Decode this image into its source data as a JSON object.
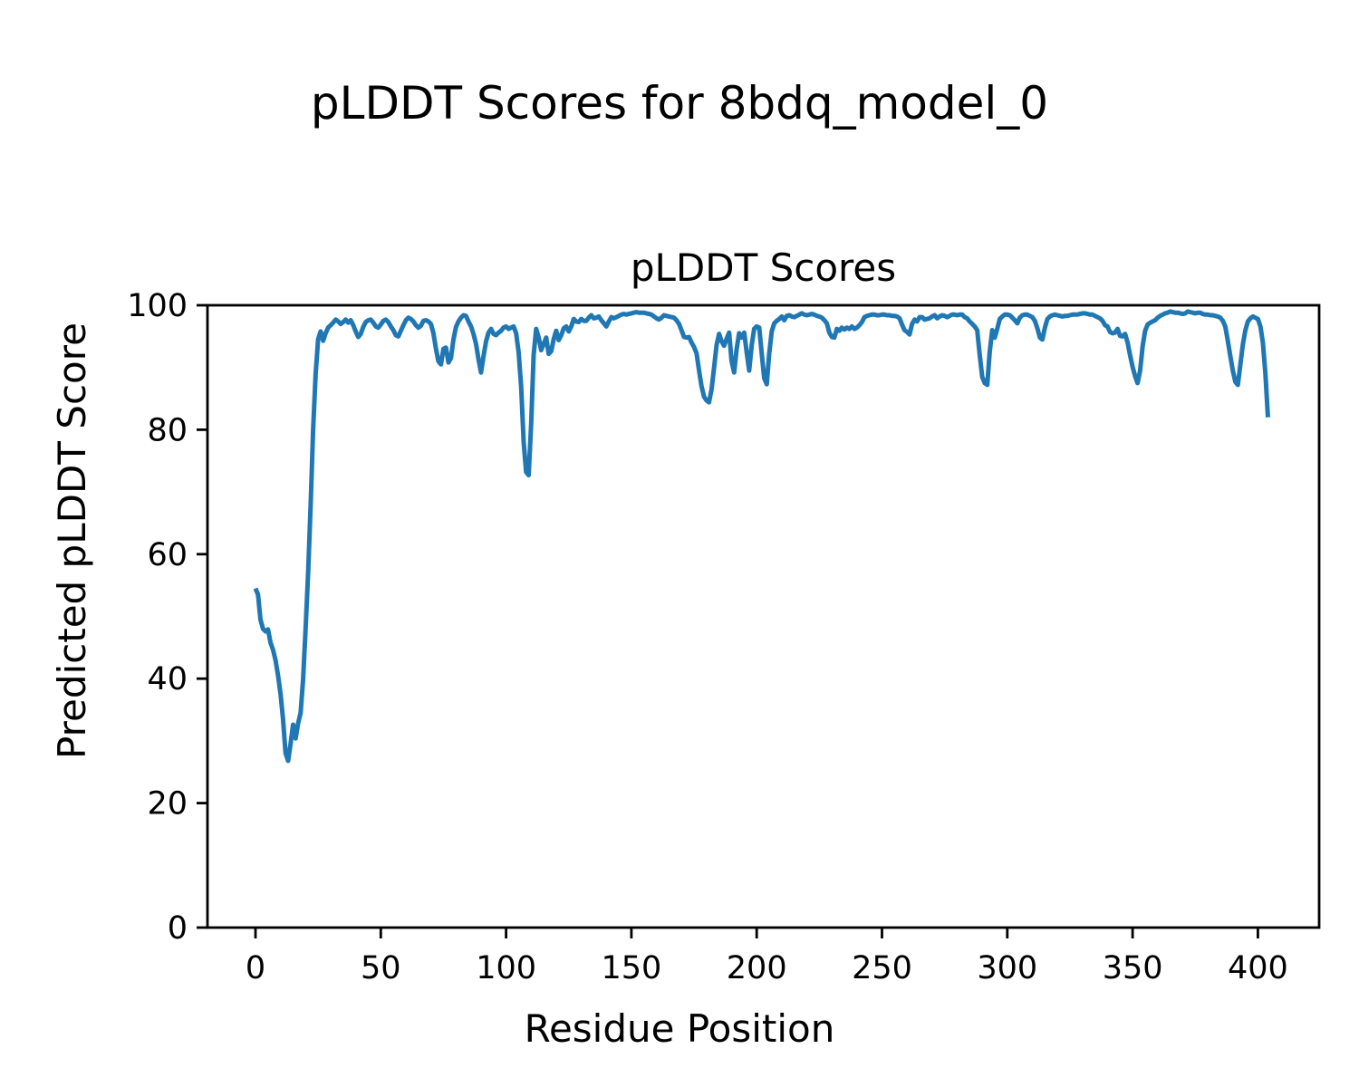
{
  "figure_title": "pLDDT Scores for 8bdq_model_0",
  "chart_data": {
    "type": "line",
    "title": "pLDDT Scores",
    "xlabel": "Residue Position",
    "ylabel": "Predicted pLDDT Score",
    "x_ticks": [
      0,
      50,
      100,
      150,
      200,
      250,
      300,
      350,
      400
    ],
    "y_ticks": [
      0,
      20,
      40,
      60,
      80,
      100
    ],
    "xlim": [
      -20.2,
      424.2
    ],
    "ylim": [
      0,
      100
    ],
    "grid": false,
    "legend": false,
    "background": "#ffffff",
    "line_color": "#1f77b4",
    "series": [
      {
        "name": "pLDDT",
        "x_start": 0,
        "x_step": 1,
        "values": [
          54.5,
          53.5,
          49.5,
          48,
          47.6,
          47.9,
          45.8,
          44.6,
          43,
          40.5,
          37.5,
          33.5,
          28,
          26.8,
          29.5,
          32.6,
          30.4,
          32.8,
          34.5,
          40,
          48,
          57,
          68,
          80,
          89,
          94.5,
          95.8,
          94.3,
          95.5,
          96.4,
          96.8,
          97.2,
          97.7,
          97.4,
          97,
          97.3,
          97.7,
          97.2,
          97.6,
          96.8,
          95.8,
          94.9,
          95.4,
          96.5,
          97.3,
          97.6,
          97.7,
          97.2,
          96.6,
          96.4,
          96.9,
          97.5,
          97.7,
          97.3,
          96.6,
          96,
          95.2,
          95,
          95.9,
          96.8,
          97.6,
          98,
          97.8,
          97.4,
          96.8,
          96.4,
          96.7,
          97.5,
          97.6,
          97.4,
          97,
          95.5,
          93,
          91,
          90.5,
          93,
          93.2,
          90.8,
          91.5,
          94.5,
          96.5,
          97.4,
          98,
          98.4,
          98.3,
          97.4,
          96.6,
          95.4,
          93.8,
          91.3,
          89.2,
          91.8,
          94.2,
          95.6,
          96.2,
          95.4,
          95.2,
          95.6,
          95.9,
          96.4,
          96.6,
          96.2,
          96.4,
          96.6,
          95.5,
          92.5,
          87,
          78,
          73.2,
          72.7,
          81,
          92,
          96.2,
          94.8,
          92.8,
          93.8,
          94.8,
          92.2,
          92.6,
          94.6,
          95.9,
          94.4,
          95.2,
          96.3,
          96.6,
          95.8,
          96.6,
          97.8,
          97.4,
          97.3,
          97.8,
          97.5,
          97.5,
          98,
          98.4,
          97.9,
          98,
          98.2,
          97.6,
          97.1,
          96.6,
          97.4,
          98.1,
          97.9,
          98.1,
          98.3,
          98.5,
          98.6,
          98.5,
          98.6,
          98.7,
          98.8,
          98.9,
          98.8,
          98.8,
          98.8,
          98.7,
          98.6,
          98.5,
          98.2,
          97.9,
          97.7,
          98,
          98.4,
          98.3,
          98.2,
          98.1,
          98,
          97.6,
          97,
          96,
          94.9,
          94.8,
          94.9,
          94,
          93.3,
          92.3,
          89.5,
          87,
          85.3,
          84.7,
          84.4,
          86.5,
          90,
          93.6,
          95.4,
          94.2,
          93.5,
          94.6,
          95.6,
          91,
          89.2,
          93,
          95.5,
          94.8,
          95.6,
          92.5,
          89.5,
          93.6,
          96.2,
          96.6,
          96.4,
          92.3,
          88.3,
          87.3,
          92.2,
          95.8,
          97.1,
          97.5,
          97.8,
          98.2,
          97.6,
          98.3,
          98.4,
          98.2,
          98.1,
          98.3,
          98.5,
          98.7,
          98.5,
          98.4,
          98.5,
          98.6,
          98.5,
          98.3,
          98.2,
          98,
          97.6,
          97.1,
          95.6,
          94.9,
          94.8,
          96.2,
          95.9,
          96.4,
          96.1,
          96.4,
          96.2,
          96.6,
          96.2,
          96.4,
          96.8,
          97.3,
          98.1,
          98.3,
          98.4,
          98.5,
          98.5,
          98.4,
          98.4,
          98.5,
          98.5,
          98.4,
          98.4,
          98.3,
          98.3,
          98.2,
          97.9,
          96.9,
          96,
          95.7,
          95.3,
          97,
          97.7,
          97.4,
          98.1,
          98.1,
          97.7,
          97.8,
          97.9,
          98.2,
          98.4,
          97.9,
          98.2,
          98.4,
          98.3,
          98.1,
          98.3,
          98.5,
          98.5,
          98.4,
          98.5,
          98.5,
          98.1,
          97.9,
          97.4,
          97,
          96.6,
          96,
          92,
          88.5,
          87.5,
          87.2,
          92.5,
          96,
          94.8,
          96.2,
          97.8,
          98.2,
          98.5,
          98.5,
          98.4,
          98,
          97.6,
          97.1,
          98,
          98.4,
          98.5,
          98.5,
          98.3,
          98.1,
          97.5,
          96.3,
          94.8,
          94.5,
          96.4,
          97.8,
          98.2,
          98.4,
          98.5,
          98.4,
          98.3,
          98.2,
          98.3,
          98.3,
          98.4,
          98.5,
          98.5,
          98.5,
          98.6,
          98.7,
          98.7,
          98.6,
          98.5,
          98.5,
          98.3,
          98.1,
          97.9,
          97.5,
          96.8,
          96.6,
          95.7,
          95.5,
          95.6,
          96.2,
          95.1,
          95,
          95.4,
          94,
          92,
          90.1,
          88.6,
          87.5,
          89.5,
          93.4,
          95.9,
          96.9,
          97.2,
          97.4,
          97.6,
          98,
          98.3,
          98.5,
          98.7,
          98.8,
          99,
          98.9,
          98.8,
          98.8,
          98.7,
          98.6,
          98.7,
          99,
          98.9,
          98.8,
          98.7,
          98.8,
          98.8,
          98.6,
          98.5,
          98.5,
          98.4,
          98.4,
          98.3,
          98.2,
          98,
          97.5,
          96.6,
          94.3,
          91.8,
          89.5,
          87.7,
          87.2,
          90.4,
          93.7,
          96,
          97.4,
          97.9,
          98.2,
          98,
          97.8,
          96.6,
          94,
          89,
          82
        ]
      }
    ]
  }
}
